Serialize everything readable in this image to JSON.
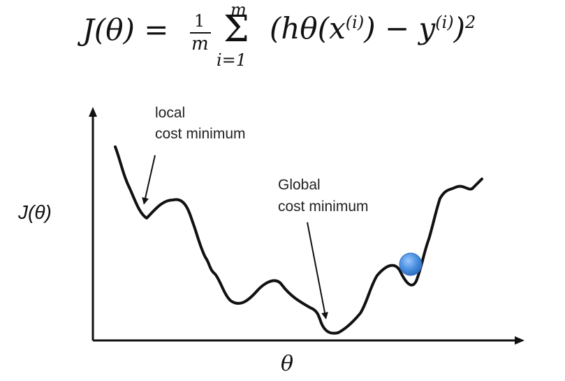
{
  "formula": {
    "lhs": "J(θ) =",
    "frac_num": "1",
    "frac_den": "m",
    "sum_upper": "m",
    "sum_symbol": "Σ",
    "sum_lower": "i=1",
    "term_main": "(hθ(x",
    "term_sup1": "(i)",
    "term_mid": ") − y",
    "term_sup2": "(i)",
    "term_end": ")",
    "term_power": "2"
  },
  "diagram": {
    "y_axis_label": "J(θ)",
    "x_axis_label": "θ",
    "local_label_line1": "local",
    "local_label_line2": "cost minimum",
    "global_label_line1": "Global",
    "global_label_line2": "cost minimum",
    "curve_color": "#111111",
    "ball_color": "#4a8fe0"
  }
}
